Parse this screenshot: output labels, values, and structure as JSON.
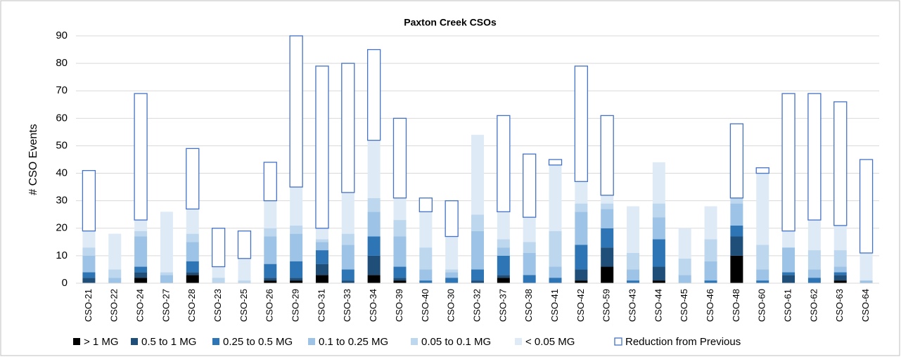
{
  "chart_data": {
    "type": "stacked_bar",
    "title": "Paxton Creek CSOs",
    "ylabel": "# CSO Events",
    "categories": [
      "CSO-21",
      "CSO-22",
      "CSO-24",
      "CSO-27",
      "CSO-28",
      "CSO-23",
      "CSO-25",
      "CSO-26",
      "CSO-29",
      "CSO-31",
      "CSO-33",
      "CSO-34",
      "CSO-39",
      "CSO-40",
      "CSO-30",
      "CSO-32",
      "CSO-37",
      "CSO-38",
      "CSO-41",
      "CSO-42",
      "CSO-59",
      "CSO-43",
      "CSO-44",
      "CSO-45",
      "CSO-46",
      "CSO-48",
      "CSO-60",
      "CSO-61",
      "CSO-62",
      "CSO-63",
      "CSO-64"
    ],
    "series": [
      {
        "name": "> 1 MG",
        "color": "#000000",
        "values": [
          0,
          0,
          2,
          0,
          3,
          0,
          0,
          1,
          1,
          3,
          0,
          3,
          1,
          0,
          0,
          0,
          2,
          0,
          0,
          1,
          6,
          0,
          1,
          0,
          0,
          10,
          0,
          0,
          0,
          1,
          0
        ]
      },
      {
        "name": "0.5 to 1 MG",
        "color": "#1f4e79",
        "values": [
          2,
          0,
          2,
          0,
          1,
          0,
          0,
          1,
          1,
          4,
          1,
          7,
          1,
          0,
          0,
          1,
          1,
          0,
          0,
          4,
          7,
          0,
          5,
          0,
          0,
          7,
          0,
          3,
          0,
          2,
          0
        ]
      },
      {
        "name": "0.25 to 0.5 MG",
        "color": "#2e75b6",
        "values": [
          2,
          0,
          2,
          0,
          4,
          0,
          0,
          5,
          6,
          5,
          4,
          7,
          4,
          1,
          2,
          4,
          7,
          3,
          2,
          9,
          7,
          1,
          10,
          0,
          1,
          4,
          1,
          1,
          2,
          1,
          0
        ]
      },
      {
        "name": "0.1 to 0.25 MG",
        "color": "#9dc3e6",
        "values": [
          6,
          2,
          11,
          3,
          7,
          0,
          0,
          10,
          10,
          3,
          9,
          9,
          11,
          4,
          2,
          14,
          3,
          8,
          4,
          12,
          7,
          4,
          8,
          3,
          7,
          8,
          4,
          9,
          3,
          2,
          1
        ]
      },
      {
        "name": "0.05 to 0.1 MG",
        "color": "#bdd7ee",
        "values": [
          3,
          3,
          2,
          1,
          3,
          2,
          1,
          3,
          3,
          1,
          4,
          5,
          6,
          8,
          1,
          6,
          3,
          4,
          13,
          3,
          2,
          6,
          5,
          6,
          8,
          2,
          9,
          0,
          7,
          6,
          0
        ]
      },
      {
        "name": "< 0.05 MG",
        "color": "#deebf7",
        "values": [
          6,
          13,
          4,
          22,
          9,
          4,
          8,
          10,
          14,
          4,
          15,
          21,
          8,
          13,
          12,
          29,
          10,
          9,
          24,
          8,
          3,
          17,
          15,
          11,
          12,
          0,
          26,
          6,
          11,
          9,
          10
        ]
      },
      {
        "name": "Reduction from Previous",
        "color": "#ffffff",
        "edgecolor": "#4472c4",
        "values": [
          22,
          0,
          46,
          0,
          22,
          14,
          10,
          14,
          55,
          59,
          47,
          33,
          29,
          5,
          13,
          0,
          35,
          23,
          2,
          42,
          29,
          0,
          0,
          0,
          0,
          27,
          2,
          50,
          46,
          45,
          34
        ]
      }
    ],
    "ylim": [
      0,
      90
    ],
    "yticks": [
      0,
      10,
      20,
      30,
      40,
      50,
      60,
      70,
      80,
      90
    ],
    "grid": true
  }
}
